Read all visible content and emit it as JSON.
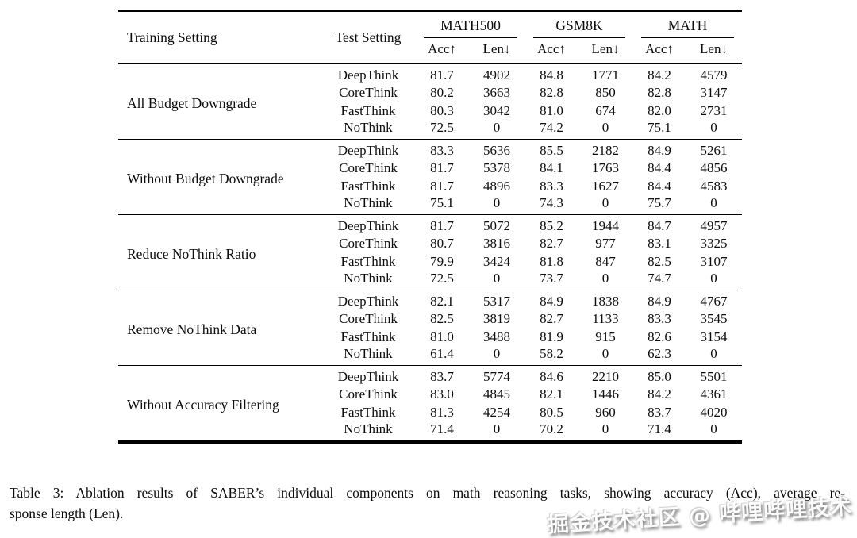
{
  "table": {
    "header": {
      "training_setting": "Training Setting",
      "test_setting": "Test Setting",
      "benchmarks": [
        {
          "name": "MATH500"
        },
        {
          "name": "GSM8K"
        },
        {
          "name": "MATH"
        }
      ],
      "metric_acc": "Acc↑",
      "metric_len": "Len↓"
    },
    "groups": [
      {
        "training_setting": "All Budget Downgrade",
        "rows": [
          {
            "test_setting": "DeepThink",
            "values": [
              "81.7",
              "4902",
              "84.8",
              "1771",
              "84.2",
              "4579"
            ]
          },
          {
            "test_setting": "CoreThink",
            "values": [
              "80.2",
              "3663",
              "82.8",
              "850",
              "82.8",
              "3147"
            ]
          },
          {
            "test_setting": "FastThink",
            "values": [
              "80.3",
              "3042",
              "81.0",
              "674",
              "82.0",
              "2731"
            ]
          },
          {
            "test_setting": "NoThink",
            "values": [
              "72.5",
              "0",
              "74.2",
              "0",
              "75.1",
              "0"
            ]
          }
        ]
      },
      {
        "training_setting": "Without Budget Downgrade",
        "rows": [
          {
            "test_setting": "DeepThink",
            "values": [
              "83.3",
              "5636",
              "85.5",
              "2182",
              "84.9",
              "5261"
            ]
          },
          {
            "test_setting": "CoreThink",
            "values": [
              "81.7",
              "5378",
              "84.1",
              "1763",
              "84.4",
              "4856"
            ]
          },
          {
            "test_setting": "FastThink",
            "values": [
              "81.7",
              "4896",
              "83.3",
              "1627",
              "84.4",
              "4583"
            ]
          },
          {
            "test_setting": "NoThink",
            "values": [
              "75.1",
              "0",
              "74.3",
              "0",
              "75.7",
              "0"
            ]
          }
        ]
      },
      {
        "training_setting": "Reduce NoThink Ratio",
        "rows": [
          {
            "test_setting": "DeepThink",
            "values": [
              "81.7",
              "5072",
              "85.2",
              "1944",
              "84.7",
              "4957"
            ]
          },
          {
            "test_setting": "CoreThink",
            "values": [
              "80.7",
              "3816",
              "82.7",
              "977",
              "83.1",
              "3325"
            ]
          },
          {
            "test_setting": "FastThink",
            "values": [
              "79.9",
              "3424",
              "81.8",
              "847",
              "82.5",
              "3107"
            ]
          },
          {
            "test_setting": "NoThink",
            "values": [
              "72.5",
              "0",
              "73.7",
              "0",
              "74.7",
              "0"
            ]
          }
        ]
      },
      {
        "training_setting": "Remove NoThink Data",
        "rows": [
          {
            "test_setting": "DeepThink",
            "values": [
              "82.1",
              "5317",
              "84.9",
              "1838",
              "84.9",
              "4767"
            ]
          },
          {
            "test_setting": "CoreThink",
            "values": [
              "82.5",
              "3819",
              "82.7",
              "1133",
              "83.3",
              "3545"
            ]
          },
          {
            "test_setting": "FastThink",
            "values": [
              "81.0",
              "3488",
              "81.9",
              "915",
              "82.6",
              "3154"
            ]
          },
          {
            "test_setting": "NoThink",
            "values": [
              "61.4",
              "0",
              "58.2",
              "0",
              "62.3",
              "0"
            ]
          }
        ]
      },
      {
        "training_setting": "Without Accuracy Filtering",
        "rows": [
          {
            "test_setting": "DeepThink",
            "values": [
              "83.7",
              "5774",
              "84.6",
              "2210",
              "85.0",
              "5501"
            ]
          },
          {
            "test_setting": "CoreThink",
            "values": [
              "83.0",
              "4845",
              "82.1",
              "1446",
              "84.2",
              "4361"
            ]
          },
          {
            "test_setting": "FastThink",
            "values": [
              "81.3",
              "4254",
              "80.5",
              "960",
              "83.7",
              "4020"
            ]
          },
          {
            "test_setting": "NoThink",
            "values": [
              "71.4",
              "0",
              "70.2",
              "0",
              "71.4",
              "0"
            ]
          }
        ]
      }
    ]
  },
  "caption": {
    "line1": "Table 3: Ablation results of SABER’s individual components on math reasoning tasks, showing accuracy (Acc), average re-",
    "line2": "sponse length (Len)."
  },
  "watermark": {
    "text": "掘金技术社区 @ 哔哩哔哩技术"
  }
}
